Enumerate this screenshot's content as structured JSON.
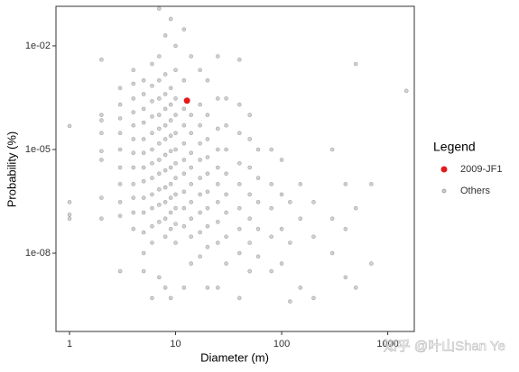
{
  "chart_data": {
    "type": "scatter",
    "x_label": "Diameter (m)",
    "y_label": "Probability (%)",
    "legend_title": "Legend",
    "legend": "right",
    "watermark": "知乎 @叶山Shan Ye",
    "xlog": true,
    "ylog": true,
    "xlim": [
      0.745,
      1780
    ],
    "ylim": [
      5.4e-11,
      0.14
    ],
    "xticks": [
      1,
      10,
      100,
      1000
    ],
    "yticks": [
      {
        "value": 1e-08,
        "label": "1e-08"
      },
      {
        "value": 1e-05,
        "label": "1e-05"
      },
      {
        "value": 0.01,
        "label": "1e-02"
      }
    ],
    "series": [
      {
        "name": "2009-JF1",
        "color": "#e41a1c",
        "x": [
          12.8
        ],
        "values": [
          0.00026
        ]
      },
      {
        "name": "Others",
        "color": "#999999",
        "x": [
          1,
          1,
          1,
          1,
          2,
          2,
          2,
          2,
          2,
          2,
          2,
          2,
          3,
          3,
          3,
          3,
          3,
          3,
          3,
          3,
          3,
          3,
          4,
          4,
          4,
          4,
          4,
          4,
          4,
          4,
          4,
          4,
          4,
          4,
          5,
          5,
          5,
          5,
          5,
          5,
          5,
          5,
          5,
          5,
          5,
          5,
          5,
          6,
          6,
          6,
          6,
          6,
          6,
          6,
          6,
          6,
          6,
          6,
          6,
          6,
          7,
          7,
          7,
          7,
          7,
          7,
          7,
          7,
          7,
          7,
          7,
          7,
          7,
          8,
          8,
          8,
          8,
          8,
          8,
          8,
          8,
          8,
          8,
          8,
          8,
          8,
          9,
          9,
          9,
          9,
          9,
          9,
          9,
          9,
          9,
          9,
          9,
          9,
          10,
          10,
          10,
          10,
          10,
          10,
          10,
          10,
          10,
          10,
          10,
          10,
          12,
          12,
          12,
          12,
          12,
          12,
          12,
          12,
          12,
          12,
          12,
          14,
          14,
          14,
          14,
          14,
          14,
          14,
          14,
          14,
          14,
          17,
          17,
          17,
          17,
          17,
          17,
          17,
          17,
          17,
          17,
          20,
          20,
          20,
          20,
          20,
          20,
          20,
          20,
          20,
          20,
          25,
          25,
          25,
          25,
          25,
          25,
          25,
          25,
          25,
          25,
          30,
          30,
          30,
          30,
          30,
          30,
          30,
          30,
          40,
          40,
          40,
          40,
          40,
          40,
          40,
          40,
          40,
          50,
          50,
          50,
          50,
          50,
          50,
          50,
          60,
          60,
          60,
          60,
          60,
          80,
          80,
          80,
          80,
          80,
          100,
          100,
          100,
          100,
          120,
          120,
          120,
          150,
          150,
          150,
          200,
          200,
          200,
          300,
          300,
          300,
          400,
          400,
          400,
          500,
          500,
          500,
          700,
          700,
          1500
        ],
        "values": [
          4.8e-05,
          3e-07,
          1.3e-07,
          1e-07,
          0.004,
          0.0001,
          7e-05,
          3e-05,
          9e-06,
          5e-06,
          4e-07,
          1e-07,
          0.0006,
          0.0002,
          8e-05,
          3e-05,
          1e-05,
          3e-06,
          1e-06,
          3e-07,
          1.2e-07,
          3e-09,
          0.002,
          0.0008,
          0.0003,
          0.00012,
          5e-05,
          2e-05,
          8e-06,
          3e-06,
          1e-06,
          4e-07,
          1.5e-07,
          5e-08,
          0.001,
          0.0004,
          0.00015,
          6e-05,
          2e-05,
          8e-06,
          3e-06,
          1.2e-06,
          4e-07,
          1.5e-07,
          4e-08,
          1e-08,
          3e-09,
          0.003,
          0.0007,
          0.00025,
          9e-05,
          3e-05,
          1e-05,
          4e-06,
          1.5e-06,
          5e-07,
          2e-07,
          6e-08,
          2e-08,
          5e-10,
          0.005,
          0.001,
          0.0003,
          0.0001,
          4e-05,
          1.5e-05,
          5e-06,
          2e-06,
          7e-07,
          2.5e-07,
          8e-08,
          2e-09,
          0.12,
          0.02,
          0.0015,
          0.0004,
          0.00015,
          5e-05,
          2e-05,
          7e-06,
          2.5e-06,
          8e-07,
          3e-07,
          1e-07,
          3e-08,
          1e-09,
          0.06,
          0.0006,
          0.0002,
          7e-05,
          2.5e-05,
          9e-06,
          3e-06,
          1e-06,
          4e-07,
          1.5e-07,
          5e-08,
          5e-10,
          0.01,
          0.002,
          0.0003,
          0.0001,
          3e-05,
          1e-05,
          4e-06,
          1.5e-06,
          5e-07,
          2e-07,
          7e-08,
          2e-08,
          0.03,
          0.001,
          0.00015,
          5e-05,
          1.5e-05,
          5e-06,
          2e-06,
          6e-07,
          2e-07,
          6e-08,
          1e-09,
          0.005,
          0.0001,
          3e-05,
          8e-06,
          3e-06,
          1e-06,
          3e-07,
          1e-07,
          3e-08,
          5e-09,
          0.002,
          0.0002,
          5e-05,
          1.5e-05,
          5e-06,
          1.5e-06,
          5e-07,
          1.5e-07,
          4e-08,
          8e-09,
          0.001,
          0.0001,
          2e-05,
          6e-06,
          2e-06,
          6e-07,
          2e-07,
          6e-08,
          1.5e-08,
          1e-09,
          0.005,
          0.0003,
          4e-05,
          1e-05,
          3e-06,
          1e-06,
          3e-07,
          8e-08,
          2e-08,
          1e-09,
          0.0003,
          5e-05,
          1e-05,
          2e-06,
          5e-07,
          1.5e-07,
          3e-08,
          5e-09,
          0.004,
          0.0002,
          3e-05,
          4e-06,
          1e-06,
          2e-07,
          5e-08,
          1e-08,
          5e-10,
          0.0001,
          2e-05,
          3e-06,
          5e-07,
          1e-07,
          2e-08,
          3e-09,
          1e-05,
          1.5e-06,
          3e-07,
          5e-08,
          8e-09,
          1e-05,
          1e-06,
          2e-07,
          3e-08,
          3e-09,
          5e-06,
          5e-07,
          5e-08,
          5e-09,
          3e-07,
          2e-08,
          4e-10,
          1e-06,
          1e-07,
          1e-09,
          3e-07,
          3e-08,
          5e-10,
          1e-05,
          1e-07,
          1e-08,
          1e-06,
          5e-08,
          2e-09,
          0.003,
          2e-07,
          1e-09,
          1e-06,
          5e-09,
          0.0005
        ]
      }
    ]
  }
}
